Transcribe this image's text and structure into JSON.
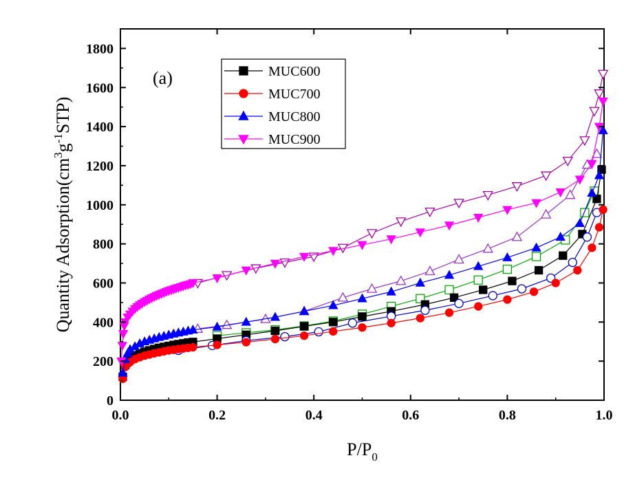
{
  "chart_data": {
    "type": "line",
    "panel_label": "(a)",
    "xlabel": "P/P",
    "xlabel_sub": "0",
    "ylabel_parts": [
      "Quantity Adsorption(cm",
      "3",
      "g",
      "-1",
      "STP)"
    ],
    "xlim": [
      0,
      1.0
    ],
    "ylim": [
      0,
      1900
    ],
    "xticks": [
      0.0,
      0.2,
      0.4,
      0.6,
      0.8,
      1.0
    ],
    "xtick_labels": [
      "0.0",
      "0.2",
      "0.4",
      "0.6",
      "0.8",
      "1.0"
    ],
    "yticks": [
      0,
      200,
      400,
      600,
      800,
      1000,
      1200,
      1400,
      1600,
      1800
    ],
    "ytick_labels": [
      "0",
      "200",
      "400",
      "600",
      "800",
      "1000",
      "1200",
      "1400",
      "1600",
      "1800"
    ],
    "legend_position": "top-left",
    "series": [
      {
        "name": "MUC600",
        "color": "#000000",
        "marker": "square",
        "adsorption": {
          "x": [
            0.005,
            0.01,
            0.015,
            0.02,
            0.03,
            0.04,
            0.05,
            0.06,
            0.07,
            0.08,
            0.09,
            0.1,
            0.11,
            0.12,
            0.13,
            0.14,
            0.15,
            0.2,
            0.26,
            0.32,
            0.38,
            0.44,
            0.5,
            0.56,
            0.63,
            0.69,
            0.75,
            0.81,
            0.865,
            0.915,
            0.955,
            0.985,
            0.995
          ],
          "y": [
            120,
            180,
            200,
            215,
            230,
            240,
            248,
            255,
            262,
            268,
            273,
            278,
            283,
            287,
            291,
            295,
            298,
            315,
            335,
            355,
            378,
            400,
            428,
            455,
            490,
            525,
            565,
            610,
            665,
            740,
            850,
            1030,
            1180
          ]
        },
        "desorption": {
          "x": [
            0.2,
            0.26,
            0.32,
            0.38,
            0.44,
            0.5,
            0.56,
            0.62,
            0.68,
            0.74,
            0.8,
            0.86,
            0.92,
            0.96,
            0.98
          ],
          "y": [
            330,
            345,
            360,
            380,
            405,
            440,
            480,
            520,
            565,
            615,
            670,
            735,
            820,
            960,
            1070
          ]
        }
      },
      {
        "name": "MUC700",
        "color": "#ff0000",
        "marker": "circle",
        "adsorption": {
          "x": [
            0.005,
            0.01,
            0.015,
            0.02,
            0.03,
            0.04,
            0.05,
            0.06,
            0.07,
            0.08,
            0.09,
            0.1,
            0.11,
            0.12,
            0.13,
            0.14,
            0.15,
            0.2,
            0.26,
            0.32,
            0.38,
            0.44,
            0.5,
            0.56,
            0.62,
            0.68,
            0.74,
            0.8,
            0.855,
            0.9,
            0.945,
            0.975,
            0.99,
            0.998
          ],
          "y": [
            110,
            170,
            185,
            195,
            210,
            220,
            228,
            234,
            240,
            245,
            250,
            255,
            258,
            262,
            265,
            268,
            271,
            283,
            297,
            313,
            330,
            352,
            372,
            395,
            420,
            448,
            480,
            515,
            555,
            600,
            665,
            780,
            885,
            975
          ]
        },
        "desorption": {
          "x": [
            0.12,
            0.19,
            0.26,
            0.34,
            0.41,
            0.48,
            0.56,
            0.63,
            0.7,
            0.77,
            0.83,
            0.89,
            0.935,
            0.965,
            0.985
          ],
          "y": [
            255,
            280,
            305,
            325,
            350,
            395,
            430,
            460,
            495,
            535,
            570,
            625,
            705,
            835,
            960
          ]
        }
      },
      {
        "name": "MUC800",
        "color": "#0000ff",
        "marker": "triangle-up",
        "adsorption": {
          "x": [
            0.005,
            0.01,
            0.015,
            0.02,
            0.03,
            0.04,
            0.05,
            0.06,
            0.07,
            0.08,
            0.09,
            0.1,
            0.11,
            0.12,
            0.13,
            0.14,
            0.15,
            0.2,
            0.26,
            0.32,
            0.38,
            0.44,
            0.5,
            0.56,
            0.62,
            0.68,
            0.74,
            0.8,
            0.86,
            0.91,
            0.95,
            0.975,
            0.99,
            0.998
          ],
          "y": [
            140,
            210,
            240,
            260,
            275,
            290,
            300,
            308,
            315,
            322,
            328,
            334,
            340,
            345,
            350,
            355,
            360,
            375,
            400,
            425,
            455,
            485,
            520,
            555,
            600,
            640,
            685,
            730,
            780,
            835,
            905,
            1060,
            1150,
            1380
          ]
        },
        "desorption": {
          "x": [
            0.16,
            0.22,
            0.3,
            0.38,
            0.46,
            0.52,
            0.58,
            0.64,
            0.7,
            0.76,
            0.82,
            0.88,
            0.93,
            0.965,
            0.985
          ],
          "y": [
            365,
            385,
            415,
            455,
            525,
            570,
            610,
            660,
            720,
            775,
            835,
            950,
            1050,
            1205,
            1260
          ]
        }
      },
      {
        "name": "MUC900",
        "color": "#ff00ff",
        "marker": "triangle-down",
        "adsorption": {
          "x": [
            0.002,
            0.004,
            0.006,
            0.008,
            0.01,
            0.015,
            0.02,
            0.025,
            0.03,
            0.035,
            0.04,
            0.045,
            0.05,
            0.055,
            0.06,
            0.065,
            0.07,
            0.075,
            0.08,
            0.085,
            0.09,
            0.095,
            0.1,
            0.105,
            0.11,
            0.115,
            0.12,
            0.125,
            0.13,
            0.135,
            0.14,
            0.145,
            0.15,
            0.2,
            0.26,
            0.32,
            0.38,
            0.44,
            0.5,
            0.56,
            0.62,
            0.68,
            0.74,
            0.8,
            0.86,
            0.91,
            0.95,
            0.975,
            0.99,
            0.998
          ],
          "y": [
            200,
            280,
            340,
            380,
            400,
            425,
            440,
            455,
            468,
            478,
            487,
            495,
            503,
            510,
            517,
            523,
            529,
            535,
            540,
            545,
            550,
            555,
            560,
            564,
            568,
            572,
            576,
            580,
            584,
            588,
            591,
            595,
            600,
            625,
            665,
            700,
            735,
            765,
            795,
            825,
            860,
            895,
            935,
            975,
            1010,
            1065,
            1130,
            1210,
            1400,
            1530
          ]
        },
        "desorption": {
          "x": [
            0.16,
            0.22,
            0.28,
            0.34,
            0.4,
            0.46,
            0.52,
            0.58,
            0.64,
            0.7,
            0.76,
            0.82,
            0.88,
            0.925,
            0.96,
            0.98,
            0.99,
            0.998
          ],
          "y": [
            600,
            640,
            675,
            705,
            735,
            780,
            855,
            915,
            965,
            1010,
            1050,
            1095,
            1150,
            1225,
            1330,
            1480,
            1570,
            1670
          ]
        }
      }
    ]
  }
}
